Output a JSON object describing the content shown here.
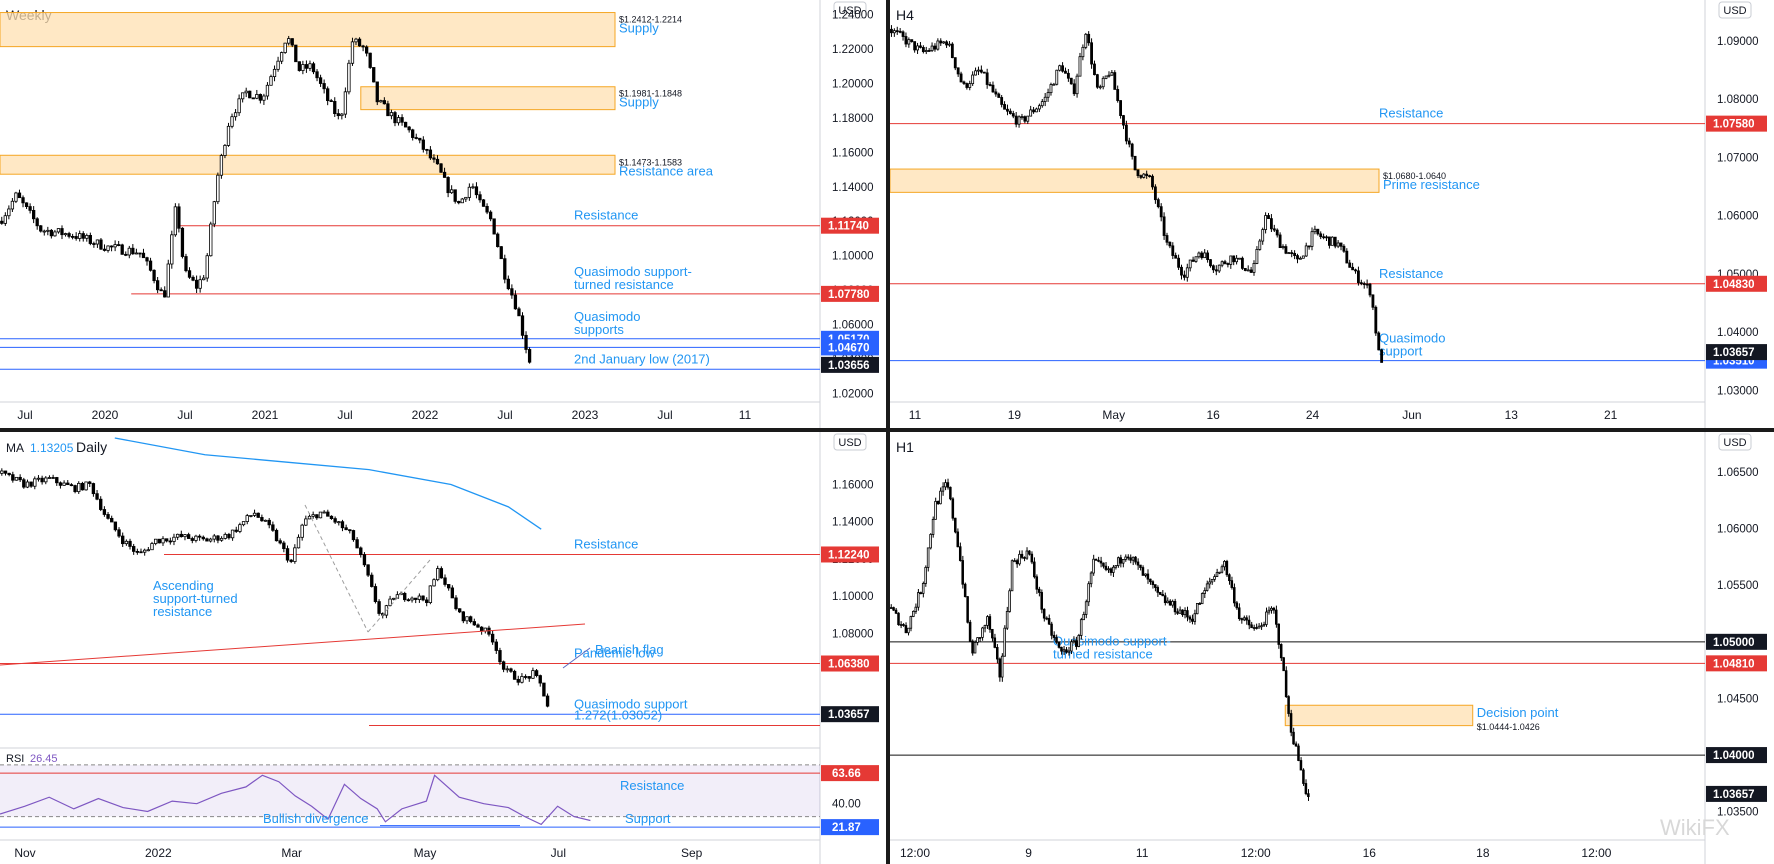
{
  "currency": "USD",
  "watermark": "WikiFX",
  "chart_data": [
    {
      "id": "weekly",
      "type": "candlestick",
      "title": "Weekly",
      "ylim": [
        1.015,
        1.245
      ],
      "y_ticks": [
        "1.24000",
        "1.22000",
        "1.20000",
        "1.18000",
        "1.16000",
        "1.14000",
        "1.12000",
        "1.10000",
        "1.08000",
        "1.06000",
        "1.04000",
        "1.02000"
      ],
      "y_tick_values": [
        1.24,
        1.22,
        1.2,
        1.18,
        1.16,
        1.14,
        1.12,
        1.1,
        1.08,
        1.06,
        1.04,
        1.02
      ],
      "x_ticks": [
        "Jul",
        "2020",
        "Jul",
        "2021",
        "Jul",
        "2022",
        "Jul",
        "2023",
        "Jul",
        "11"
      ],
      "price_path": [
        [
          0,
          1.12
        ],
        [
          0.02,
          1.135
        ],
        [
          0.05,
          1.115
        ],
        [
          0.09,
          1.112
        ],
        [
          0.13,
          1.105
        ],
        [
          0.17,
          1.102
        ],
        [
          0.185,
          1.09
        ],
        [
          0.2,
          1.075
        ],
        [
          0.215,
          1.13
        ],
        [
          0.225,
          1.09
        ],
        [
          0.24,
          1.082
        ],
        [
          0.25,
          1.09
        ],
        [
          0.265,
          1.145
        ],
        [
          0.28,
          1.18
        ],
        [
          0.3,
          1.195
        ],
        [
          0.32,
          1.192
        ],
        [
          0.335,
          1.21
        ],
        [
          0.35,
          1.228
        ],
        [
          0.365,
          1.208
        ],
        [
          0.38,
          1.21
        ],
        [
          0.4,
          1.19
        ],
        [
          0.415,
          1.178
        ],
        [
          0.43,
          1.225
        ],
        [
          0.445,
          1.22
        ],
        [
          0.46,
          1.19
        ],
        [
          0.48,
          1.18
        ],
        [
          0.5,
          1.172
        ],
        [
          0.52,
          1.16
        ],
        [
          0.535,
          1.15
        ],
        [
          0.545,
          1.14
        ],
        [
          0.56,
          1.13
        ],
        [
          0.575,
          1.142
        ],
        [
          0.585,
          1.13
        ],
        [
          0.6,
          1.12
        ],
        [
          0.615,
          1.09
        ],
        [
          0.63,
          1.07
        ],
        [
          0.645,
          1.04
        ],
        [
          0.648,
          1.037
        ]
      ],
      "zones": [
        {
          "label": "Supply",
          "range_text": "$1.2412-1.2214",
          "top": 1.2412,
          "bottom": 1.2214,
          "x0": 0.0
        },
        {
          "label": "Supply",
          "range_text": "$1.1981-1.1848",
          "top": 1.1981,
          "bottom": 1.1848,
          "x0": 0.44
        },
        {
          "label": "Resistance area",
          "range_text": "$1.1473-1.1583",
          "top": 1.1583,
          "bottom": 1.1473,
          "x0": 0.0
        }
      ],
      "lines": [
        {
          "label": "Resistance",
          "value": 1.1174,
          "color": "#e53935",
          "badge": "1.11740",
          "x0": 0.22
        },
        {
          "label": "Quasimodo support-\nturned resistance",
          "value": 1.0778,
          "color": "#e53935",
          "badge": "1.07780",
          "x0": 0.16
        },
        {
          "label": "Quasimodo\nsupports",
          "value": 1.0517,
          "color": "#2962ff",
          "badge": "1.05170",
          "x0": 0.0
        },
        {
          "label": "",
          "value": 1.0467,
          "color": "#2962ff",
          "badge": "1.04670",
          "x0": 0.0
        },
        {
          "label": "2nd January low (2017)",
          "value": 1.034,
          "color": "#2962ff",
          "badge": "",
          "x0": 0.0
        }
      ],
      "last_price": {
        "value": 1.03656,
        "badge": "1.03656"
      }
    },
    {
      "id": "h4",
      "type": "candlestick",
      "title": "H4",
      "ylim": [
        1.028,
        1.096
      ],
      "y_ticks": [
        "1.09000",
        "1.08000",
        "1.07000",
        "1.06000",
        "1.05000",
        "1.04000",
        "1.03000"
      ],
      "y_tick_values": [
        1.09,
        1.08,
        1.07,
        1.06,
        1.05,
        1.04,
        1.03
      ],
      "x_ticks": [
        "11",
        "19",
        "May",
        "16",
        "24",
        "Jun",
        "13",
        "21"
      ],
      "price_path": [
        [
          0,
          1.092
        ],
        [
          0.04,
          1.088
        ],
        [
          0.07,
          1.09
        ],
        [
          0.09,
          1.082
        ],
        [
          0.11,
          1.085
        ],
        [
          0.14,
          1.078
        ],
        [
          0.16,
          1.076
        ],
        [
          0.19,
          1.08
        ],
        [
          0.21,
          1.086
        ],
        [
          0.225,
          1.081
        ],
        [
          0.24,
          1.092
        ],
        [
          0.255,
          1.081
        ],
        [
          0.27,
          1.085
        ],
        [
          0.3,
          1.068
        ],
        [
          0.32,
          1.066
        ],
        [
          0.34,
          1.055
        ],
        [
          0.36,
          1.05
        ],
        [
          0.38,
          1.054
        ],
        [
          0.4,
          1.051
        ],
        [
          0.42,
          1.053
        ],
        [
          0.445,
          1.05
        ],
        [
          0.46,
          1.06
        ],
        [
          0.48,
          1.055
        ],
        [
          0.5,
          1.052
        ],
        [
          0.52,
          1.057
        ],
        [
          0.55,
          1.055
        ],
        [
          0.57,
          1.05
        ],
        [
          0.59,
          1.047
        ],
        [
          0.6,
          1.036
        ],
        [
          0.605,
          1.035
        ]
      ],
      "zones": [
        {
          "label": "Prime resistance",
          "range_text": "$1.0680-1.0640",
          "top": 1.068,
          "bottom": 1.064,
          "x0": 0.0
        }
      ],
      "lines": [
        {
          "label": "Resistance",
          "value": 1.0758,
          "color": "#e53935",
          "badge": "1.07580",
          "x0": 0.0
        },
        {
          "label": "Resistance",
          "value": 1.0483,
          "color": "#e53935",
          "badge": "1.04830",
          "x0": 0.0
        },
        {
          "label": "Quasimodo\nsupport",
          "value": 1.0351,
          "color": "#2962ff",
          "badge": "1.03510",
          "x0": 0.0
        }
      ],
      "last_price": {
        "value": 1.03657,
        "badge": "1.03657"
      }
    },
    {
      "id": "daily",
      "type": "candlestick",
      "title": "Daily",
      "ma_label": "MA",
      "ma_value": "1.13205",
      "ylim": [
        1.02,
        1.185
      ],
      "y_ticks": [
        "1.16000",
        "1.14000",
        "1.12000",
        "1.10000",
        "1.08000"
      ],
      "y_tick_values": [
        1.16,
        1.14,
        1.12,
        1.1,
        1.08
      ],
      "x_ticks": [
        "Nov",
        "2022",
        "Mar",
        "May",
        "Jul",
        "Sep"
      ],
      "price_path": [
        [
          0,
          1.166
        ],
        [
          0.03,
          1.16
        ],
        [
          0.06,
          1.163
        ],
        [
          0.09,
          1.158
        ],
        [
          0.11,
          1.16
        ],
        [
          0.13,
          1.142
        ],
        [
          0.15,
          1.13
        ],
        [
          0.17,
          1.122
        ],
        [
          0.19,
          1.13
        ],
        [
          0.22,
          1.132
        ],
        [
          0.25,
          1.13
        ],
        [
          0.28,
          1.133
        ],
        [
          0.31,
          1.145
        ],
        [
          0.33,
          1.136
        ],
        [
          0.355,
          1.118
        ],
        [
          0.37,
          1.14
        ],
        [
          0.39,
          1.145
        ],
        [
          0.41,
          1.14
        ],
        [
          0.43,
          1.132
        ],
        [
          0.445,
          1.115
        ],
        [
          0.465,
          1.088
        ],
        [
          0.48,
          1.1
        ],
        [
          0.5,
          1.1
        ],
        [
          0.52,
          1.098
        ],
        [
          0.535,
          1.115
        ],
        [
          0.545,
          1.105
        ],
        [
          0.56,
          1.09
        ],
        [
          0.58,
          1.085
        ],
        [
          0.6,
          1.078
        ],
        [
          0.615,
          1.06
        ],
        [
          0.635,
          1.055
        ],
        [
          0.65,
          1.058
        ],
        [
          0.66,
          1.052
        ],
        [
          0.668,
          1.041
        ],
        [
          0.67,
          1.038
        ]
      ],
      "ma_path": [
        [
          0.14,
          1.185
        ],
        [
          0.25,
          1.176
        ],
        [
          0.35,
          1.172
        ],
        [
          0.45,
          1.168
        ],
        [
          0.55,
          1.16
        ],
        [
          0.62,
          1.148
        ],
        [
          0.66,
          1.136
        ]
      ],
      "lines": [
        {
          "label": "Resistance",
          "value": 1.1224,
          "color": "#e53935",
          "badge": "1.12240",
          "x0": 0.2
        },
        {
          "label": "Pandemic low",
          "value": 1.0638,
          "color": "#e53935",
          "badge": "1.06380",
          "x0": 0.0
        },
        {
          "label": "Quasimodo support",
          "value": 1.0365,
          "color": "#2962ff",
          "badge": "",
          "x0": 0.0
        },
        {
          "label": "1.272(1.03052)",
          "value": 1.0305,
          "color": "#e53935",
          "badge": "",
          "x0": 0.45
        }
      ],
      "annotations": [
        "Ascending\nsupport-turned\nresistance",
        "Bearish flag"
      ],
      "last_price": {
        "value": 1.03657,
        "badge": "1.03657"
      },
      "rsi": {
        "label": "RSI",
        "value": "26.45",
        "y_ticks": [
          "40.00"
        ],
        "badges": [
          "63.66",
          "21.87"
        ],
        "levels": [
          {
            "label": "Resistance",
            "value": 63.66
          },
          {
            "label": "Support",
            "value": 21.87
          }
        ],
        "divergence": "Bullish divergence",
        "path": [
          [
            0,
            32
          ],
          [
            0.03,
            38
          ],
          [
            0.06,
            45
          ],
          [
            0.09,
            36
          ],
          [
            0.12,
            44
          ],
          [
            0.15,
            37
          ],
          [
            0.18,
            34
          ],
          [
            0.21,
            42
          ],
          [
            0.24,
            40
          ],
          [
            0.27,
            48
          ],
          [
            0.3,
            53
          ],
          [
            0.32,
            62
          ],
          [
            0.34,
            57
          ],
          [
            0.36,
            46
          ],
          [
            0.38,
            38
          ],
          [
            0.4,
            28
          ],
          [
            0.42,
            55
          ],
          [
            0.44,
            44
          ],
          [
            0.46,
            36
          ],
          [
            0.47,
            26
          ],
          [
            0.49,
            36
          ],
          [
            0.52,
            42
          ],
          [
            0.53,
            62
          ],
          [
            0.56,
            45
          ],
          [
            0.59,
            40
          ],
          [
            0.62,
            37
          ],
          [
            0.64,
            30
          ],
          [
            0.66,
            24
          ],
          [
            0.68,
            38
          ],
          [
            0.7,
            30
          ],
          [
            0.72,
            27
          ]
        ]
      }
    },
    {
      "id": "h1",
      "type": "candlestick",
      "title": "H1",
      "ylim": [
        1.0325,
        1.068
      ],
      "y_ticks": [
        "1.06500",
        "1.06000",
        "1.05500",
        "1.04500",
        "1.03500"
      ],
      "y_tick_values": [
        1.065,
        1.06,
        1.055,
        1.045,
        1.035
      ],
      "x_ticks": [
        "12:00",
        "9",
        "11",
        "12:00",
        "16",
        "18",
        "12:00"
      ],
      "price_path": [
        [
          0,
          1.053
        ],
        [
          0.02,
          1.051
        ],
        [
          0.04,
          1.055
        ],
        [
          0.055,
          1.062
        ],
        [
          0.07,
          1.064
        ],
        [
          0.085,
          1.058
        ],
        [
          0.1,
          1.049
        ],
        [
          0.12,
          1.052
        ],
        [
          0.135,
          1.047
        ],
        [
          0.15,
          1.057
        ],
        [
          0.17,
          1.058
        ],
        [
          0.19,
          1.052
        ],
        [
          0.21,
          1.049
        ],
        [
          0.23,
          1.05
        ],
        [
          0.25,
          1.057
        ],
        [
          0.27,
          1.056
        ],
        [
          0.29,
          1.058
        ],
        [
          0.31,
          1.056
        ],
        [
          0.33,
          1.054
        ],
        [
          0.35,
          1.053
        ],
        [
          0.37,
          1.052
        ],
        [
          0.39,
          1.055
        ],
        [
          0.41,
          1.057
        ],
        [
          0.43,
          1.052
        ],
        [
          0.45,
          1.051
        ],
        [
          0.47,
          1.053
        ],
        [
          0.48,
          1.049
        ],
        [
          0.49,
          1.043
        ],
        [
          0.5,
          1.04
        ],
        [
          0.51,
          1.037
        ],
        [
          0.515,
          1.036
        ]
      ],
      "zones": [
        {
          "label": "Decision point",
          "range_text": "$1.0444-1.0426",
          "top": 1.0444,
          "bottom": 1.0426,
          "x0": 0.485
        }
      ],
      "lines": [
        {
          "label": "",
          "value": 1.05,
          "color": "#111111",
          "badge": "1.05000",
          "x0": 0.0
        },
        {
          "label": "Quasimodo support-\nturned resistance",
          "value": 1.0481,
          "color": "#e53935",
          "badge": "1.04810",
          "x0": 0.0
        },
        {
          "label": "",
          "value": 1.04,
          "color": "#111111",
          "badge": "1.04000",
          "x0": 0.0
        }
      ],
      "last_price": {
        "value": 1.03657,
        "badge": "1.03657"
      }
    }
  ]
}
